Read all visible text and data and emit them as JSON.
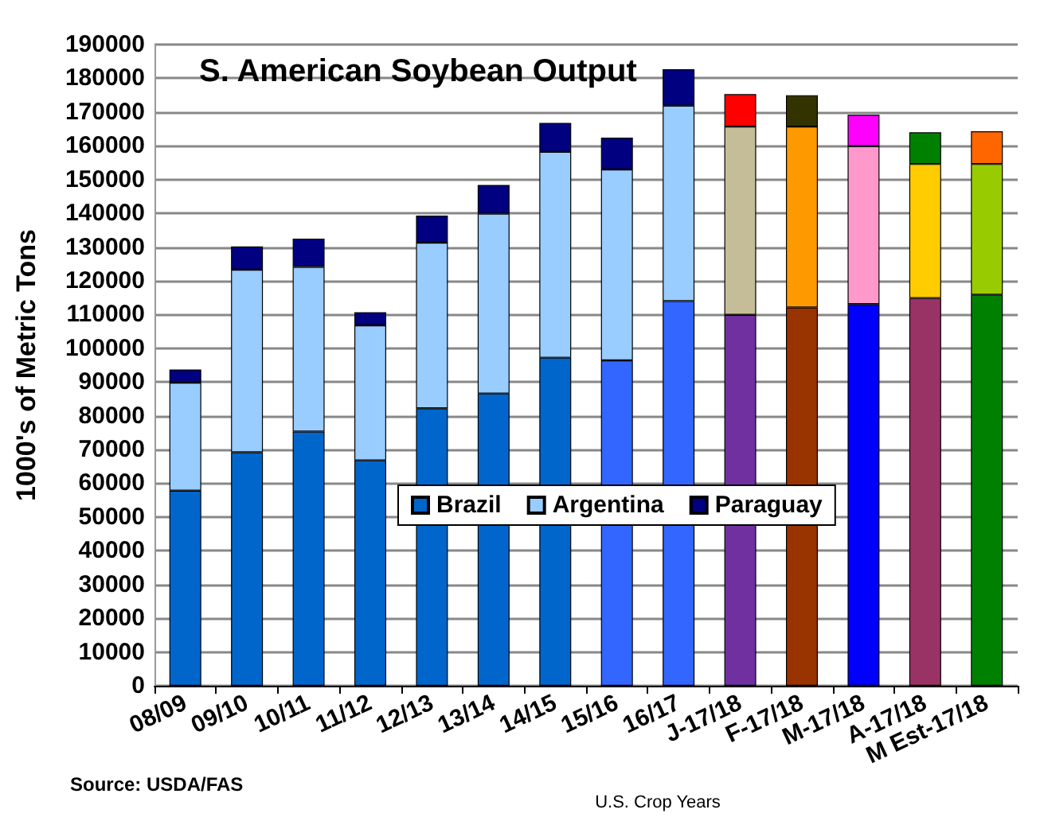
{
  "chart_data": {
    "type": "bar",
    "stacked": true,
    "title": "S. American Soybean Output",
    "xlabel": "U.S. Crop Years",
    "ylabel": "1000's of Metric Tons",
    "annotations": [
      "Source: USDA/FAS"
    ],
    "categories": [
      "08/09",
      "09/10",
      "10/11",
      "11/12",
      "12/13",
      "13/14",
      "14/15",
      "15/16",
      "16/17",
      "J-17/18",
      "F-17/18",
      "M-17/18",
      "A-17/18",
      "M Est-17/18"
    ],
    "series": [
      {
        "name": "Brazil",
        "color": "#0066cc",
        "values": [
          57800,
          69200,
          75300,
          66800,
          82200,
          86600,
          97200,
          96400,
          114000,
          109900,
          112100,
          113100,
          114900,
          115900
        ],
        "colors": [
          "#0066cc",
          "#0066cc",
          "#0066cc",
          "#0066cc",
          "#0066cc",
          "#0066cc",
          "#0066cc",
          "#3366ff",
          "#3366ff",
          "#7030a0",
          "#993300",
          "#0000ff",
          "#993366",
          "#008000"
        ]
      },
      {
        "name": "Argentina",
        "color": "#99ccff",
        "values": [
          32000,
          54100,
          48800,
          40000,
          49100,
          53300,
          61000,
          56600,
          57900,
          55800,
          53600,
          46800,
          39700,
          38700
        ],
        "colors": [
          "#99ccff",
          "#99ccff",
          "#99ccff",
          "#99ccff",
          "#99ccff",
          "#99ccff",
          "#99ccff",
          "#99ccff",
          "#99ccff",
          "#c4bd97",
          "#ff9900",
          "#ff99cc",
          "#ffcc00",
          "#99cc00"
        ]
      },
      {
        "name": "Paraguay",
        "color": "#000080",
        "values": [
          3900,
          6900,
          8400,
          3900,
          8000,
          8500,
          8600,
          9400,
          10800,
          9600,
          9300,
          9300,
          9400,
          9700
        ],
        "colors": [
          "#000080",
          "#000080",
          "#000080",
          "#000080",
          "#000080",
          "#000080",
          "#000080",
          "#000080",
          "#000080",
          "#ff0000",
          "#333300",
          "#ff00ff",
          "#008000",
          "#ff6600"
        ]
      }
    ],
    "ylim": [
      0,
      190000
    ],
    "yticks": [
      0,
      10000,
      20000,
      30000,
      40000,
      50000,
      60000,
      70000,
      80000,
      90000,
      100000,
      110000,
      120000,
      130000,
      140000,
      150000,
      160000,
      170000,
      180000,
      190000
    ],
    "grid": "y",
    "legend": "bottom"
  }
}
